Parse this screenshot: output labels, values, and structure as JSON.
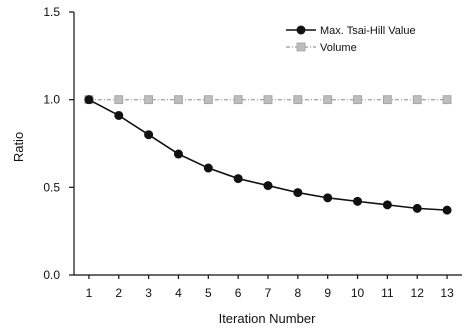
{
  "chart_data": {
    "type": "line",
    "title": "",
    "xlabel": "Iteration Number",
    "ylabel": "Ratio",
    "x": [
      1,
      2,
      3,
      4,
      5,
      6,
      7,
      8,
      9,
      10,
      11,
      12,
      13
    ],
    "xlim": [
      0.5,
      13.5
    ],
    "ylim": [
      0.0,
      1.5
    ],
    "y_ticks": [
      "0.0",
      "0.5",
      "1.0",
      "1.5"
    ],
    "x_ticks": [
      "1",
      "2",
      "3",
      "4",
      "5",
      "6",
      "7",
      "8",
      "9",
      "10",
      "11",
      "12",
      "13"
    ],
    "grid": false,
    "legend_position": "top-right",
    "series": [
      {
        "name": "Max. Tsai-Hill Value",
        "values": [
          1.0,
          0.91,
          0.8,
          0.69,
          0.61,
          0.55,
          0.51,
          0.47,
          0.44,
          0.42,
          0.4,
          0.38,
          0.37
        ],
        "color": "#111111",
        "line_style": "solid",
        "marker": "filled-circle"
      },
      {
        "name": "Volume",
        "values": [
          1.0,
          1.0,
          1.0,
          1.0,
          1.0,
          1.0,
          1.0,
          1.0,
          1.0,
          1.0,
          1.0,
          1.0,
          1.0
        ],
        "color": "#a8a8a8",
        "line_style": "dash-dot",
        "marker": "gray-square"
      }
    ]
  }
}
